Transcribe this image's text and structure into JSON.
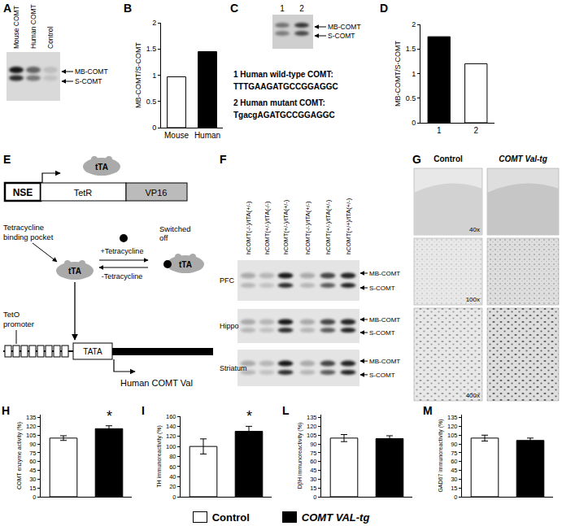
{
  "figure": {
    "panel_letters": [
      "A",
      "B",
      "C",
      "D",
      "E",
      "F",
      "G",
      "H",
      "I",
      "L",
      "M"
    ],
    "A": {
      "lanes": [
        "Mouse COMT",
        "Human COMT",
        "Control"
      ],
      "bands": [
        "MB-COMT",
        "S-COMT"
      ]
    },
    "C": {
      "lanes": [
        "1",
        "2"
      ],
      "bands": [
        "MB-COMT",
        "S-COMT"
      ],
      "sequences": [
        {
          "label": "1 Human wild-type COMT:",
          "sequence": "TTTGAAGATGCCGGAGGC"
        },
        {
          "label": "2 Human mutant COMT:",
          "sequence": "TgacgAGATGCCGGAGGC"
        }
      ]
    },
    "E": {
      "promoter": "NSE",
      "gene_parts": [
        "TetR",
        "VP16"
      ],
      "protein": "tTA",
      "pocket_label": [
        "Tetracycline",
        "binding pocket"
      ],
      "plus": "+Tetracycline",
      "minus": "-Tetracycline",
      "off_label": [
        "Switched",
        "off"
      ],
      "teto_label": [
        "TetO",
        "promoter"
      ],
      "tata": "TATA",
      "target": "Human COMT Val"
    },
    "F": {
      "lanes": [
        "hCOMT(-/-)/tTA(+/-)",
        "hCOMT(+/-)/tTA(-/-)",
        "hCOMT(+/-)/tTA(+/-)",
        "hCOMT(-/-)/tTA(+/-)",
        "hCOMT(+/-)/tTA(+/-)",
        "hCOMT(+/+)/tTA(+/-)"
      ],
      "regions": [
        "PFC",
        "Hippo",
        "Striatum"
      ],
      "bands": [
        "MB-COMT",
        "S-COMT"
      ]
    },
    "G": {
      "columns": [
        "Control",
        "COMT Val-tg"
      ],
      "magnifications": [
        "40x",
        "100x",
        "400x"
      ]
    },
    "legend": [
      {
        "name": "Control",
        "color": "#ffffff"
      },
      {
        "name": "COMT VAL-tg",
        "color": "#000000"
      }
    ]
  },
  "chart_data": [
    {
      "type": "bar",
      "categories": [
        "Mouse",
        "Human"
      ],
      "values": [
        0.97,
        1.45
      ],
      "colors": [
        "#ffffff",
        "#000000"
      ],
      "y_label": "MB-COMT/S-COMT",
      "ylim": [
        0,
        2
      ],
      "yticks": [
        0,
        0.5,
        1,
        1.5,
        2
      ]
    },
    {
      "type": "bar",
      "categories": [
        "1",
        "2"
      ],
      "values": [
        1.75,
        1.2
      ],
      "colors": [
        "#000000",
        "#ffffff"
      ],
      "y_label": "MB-COMT/S-COMT",
      "ylim": [
        0,
        2
      ],
      "yticks": [
        0,
        0.5,
        1,
        1.5,
        2
      ]
    },
    {
      "type": "bar",
      "categories": [
        null,
        null
      ],
      "values": [
        100,
        116
      ],
      "error": [
        4,
        5
      ],
      "colors": [
        "#ffffff",
        "#000000"
      ],
      "y_label": "COMT enzyme activity (%)",
      "ylim": [
        0,
        140
      ],
      "yticks": [
        0,
        15,
        30,
        45,
        60,
        75,
        90,
        105,
        120,
        135
      ],
      "tick_labels": "y",
      "annotations": [
        {
          "text": "*",
          "at": 1
        }
      ]
    },
    {
      "type": "bar",
      "categories": [
        null,
        null
      ],
      "values": [
        100,
        130
      ],
      "error": [
        15,
        10
      ],
      "colors": [
        "#ffffff",
        "#000000"
      ],
      "y_label": "TH immunoreactivity (%)",
      "ylim": [
        0,
        160
      ],
      "yticks": [
        0,
        20,
        40,
        60,
        80,
        100,
        120,
        140,
        160
      ],
      "tick_labels": "y",
      "annotations": [
        {
          "text": "*",
          "at": 1
        }
      ]
    },
    {
      "type": "bar",
      "categories": [
        null,
        null
      ],
      "values": [
        100,
        99
      ],
      "error": [
        6,
        5
      ],
      "colors": [
        "#ffffff",
        "#000000"
      ],
      "y_label": "DβH immunoreactivity (%)",
      "ylim": [
        0,
        140
      ],
      "yticks": [
        0,
        15,
        30,
        45,
        60,
        75,
        90,
        105,
        120,
        135
      ],
      "tick_labels": "y"
    },
    {
      "type": "bar",
      "categories": [
        null,
        null
      ],
      "values": [
        100,
        96
      ],
      "error": [
        5,
        4
      ],
      "colors": [
        "#ffffff",
        "#000000"
      ],
      "y_label": "GAD67 immunoreactivity (%)",
      "ylim": [
        0,
        140
      ],
      "yticks": [
        0,
        15,
        30,
        45,
        60,
        75,
        90,
        105,
        120,
        135
      ],
      "tick_labels": "y"
    }
  ]
}
